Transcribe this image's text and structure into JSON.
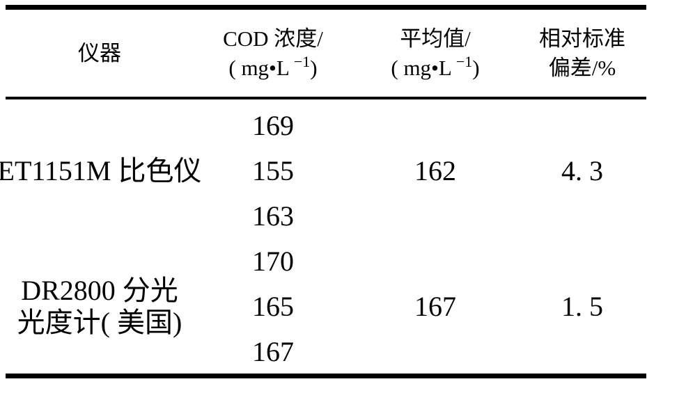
{
  "colors": {
    "background": "#ffffff",
    "text": "#000000",
    "rule": "#000000"
  },
  "header": {
    "col1": {
      "line1": "仪器"
    },
    "col2": {
      "line1": "COD 浓度/",
      "unit_base": "( mg•L",
      "unit_sup": "−1",
      "unit_close": ")"
    },
    "col3": {
      "line1": "平均值/",
      "unit_base": "( mg•L",
      "unit_sup": "−1",
      "unit_close": ")"
    },
    "col4": {
      "line1": "相对标准",
      "line2": "偏差/%"
    }
  },
  "body": {
    "groups": [
      {
        "instrument_lines": [
          "ET1151M 比色仪"
        ],
        "cod_values": [
          "169",
          "155",
          "163"
        ],
        "average": "162",
        "rsd": "4. 3"
      },
      {
        "instrument_lines": [
          "DR2800 分光",
          "光度计( 美国)"
        ],
        "cod_values": [
          "170",
          "165",
          "167"
        ],
        "average": "167",
        "rsd": "1. 5"
      }
    ]
  },
  "chart_data": {
    "type": "table",
    "columns": [
      "仪器",
      "COD 浓度/( mg•L−1)",
      "平均值/( mg•L−1)",
      "相对标准偏差/%"
    ],
    "rows": [
      [
        "ET1151M 比色仪",
        "169",
        "162",
        "4. 3"
      ],
      [
        "ET1151M 比色仪",
        "155",
        "162",
        "4. 3"
      ],
      [
        "ET1151M 比色仪",
        "163",
        "162",
        "4. 3"
      ],
      [
        "DR2800 分光光度计( 美国)",
        "170",
        "167",
        "1. 5"
      ],
      [
        "DR2800 分光光度计( 美国)",
        "165",
        "167",
        "1. 5"
      ],
      [
        "DR2800 分光光度计( 美国)",
        "167",
        "167",
        "1. 5"
      ]
    ]
  }
}
